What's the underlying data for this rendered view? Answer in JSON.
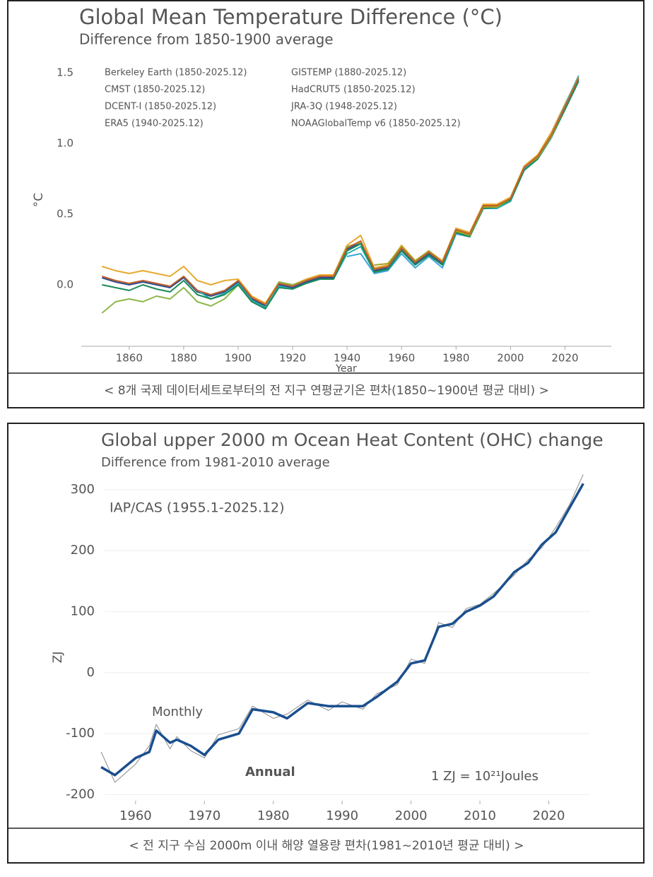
{
  "chart_data": [
    {
      "type": "line",
      "title": "Global Mean Temperature Difference (°C)",
      "subtitle": "Difference from 1850-1900 average",
      "y_label": "°C",
      "x_label": "Year",
      "caption": "< 8개 국제 데이터세트로부터의 전 지구 연평균기온 편차(1850~1900년 평균 대비) >",
      "x": [
        1850,
        1855,
        1860,
        1865,
        1870,
        1875,
        1880,
        1885,
        1890,
        1895,
        1900,
        1905,
        1910,
        1915,
        1920,
        1925,
        1930,
        1935,
        1940,
        1945,
        1950,
        1955,
        1960,
        1965,
        1970,
        1975,
        1980,
        1985,
        1990,
        1995,
        2000,
        2005,
        2010,
        2015,
        2020,
        2025
      ],
      "xlim": [
        1845,
        2030
      ],
      "xticks": [
        1860,
        1880,
        1900,
        1920,
        1940,
        1960,
        1980,
        2000,
        2020
      ],
      "ylim": [
        -0.4,
        1.6
      ],
      "yticks": [
        {
          "value": 0,
          "label": "0.0"
        },
        0.5,
        {
          "value": 1,
          "label": "1.0"
        },
        1.5
      ],
      "grid": false,
      "series": [
        {
          "name": "Berkeley Earth (1850-2025.12)",
          "color": "#2c4a8a",
          "values": [
            0.05,
            0.02,
            0.0,
            0.02,
            0.0,
            -0.02,
            0.05,
            -0.05,
            -0.08,
            -0.05,
            0.02,
            -0.1,
            -0.15,
            0.0,
            -0.02,
            0.02,
            0.05,
            0.05,
            0.25,
            0.3,
            0.1,
            0.12,
            0.25,
            0.15,
            0.22,
            0.15,
            0.38,
            0.35,
            0.55,
            0.55,
            0.6,
            0.82,
            0.9,
            1.05,
            1.25,
            1.45
          ]
        },
        {
          "name": "CMST (1850-2025.12)",
          "color": "#e8a92e",
          "values": [
            0.13,
            0.1,
            0.08,
            0.1,
            0.08,
            0.06,
            0.13,
            0.03,
            0,
            0.03,
            0.04,
            -0.08,
            -0.13,
            0.02,
            0,
            0.04,
            0.07,
            0.07,
            0.28,
            0.35,
            0.12,
            0.14,
            0.28,
            0.17,
            0.24,
            0.17,
            0.4,
            0.37,
            0.57,
            0.57,
            0.62,
            0.84,
            0.92,
            1.08,
            1.28,
            1.47
          ]
        },
        {
          "name": "DCENT-I (1850-2025.12)",
          "color": "#8db84a",
          "values": [
            -0.2,
            -0.12,
            -0.1,
            -0.12,
            -0.08,
            -0.1,
            -0.02,
            -0.12,
            -0.15,
            -0.1,
            0,
            -0.12,
            -0.16,
            0.02,
            0,
            0.03,
            0.06,
            0.06,
            0.27,
            0.3,
            0.11,
            0.13,
            0.26,
            0.16,
            0.23,
            0.16,
            0.39,
            0.36,
            0.56,
            0.56,
            0.61,
            0.83,
            0.91,
            1.06,
            1.26,
            1.46
          ]
        },
        {
          "name": "ERA5 (1940-2025.12)",
          "color": "#3aa6d8",
          "values": [
            null,
            null,
            null,
            null,
            null,
            null,
            null,
            null,
            null,
            null,
            null,
            null,
            null,
            null,
            null,
            null,
            null,
            null,
            0.2,
            0.22,
            0.08,
            0.1,
            0.22,
            0.12,
            0.2,
            0.12,
            0.36,
            0.34,
            0.54,
            0.54,
            0.6,
            0.82,
            0.9,
            1.06,
            1.27,
            1.48
          ]
        },
        {
          "name": "GISTEMP (1880-2025.12)",
          "color": "#2bb0b0",
          "values": [
            null,
            null,
            null,
            null,
            null,
            null,
            0.06,
            -0.04,
            -0.1,
            -0.06,
            0.01,
            -0.11,
            -0.16,
            -0.01,
            -0.03,
            0.01,
            0.04,
            0.04,
            0.22,
            0.27,
            0.09,
            0.11,
            0.24,
            0.14,
            0.21,
            0.14,
            0.37,
            0.34,
            0.54,
            0.54,
            0.59,
            0.81,
            0.89,
            1.04,
            1.24,
            1.44
          ]
        },
        {
          "name": "HadCRUT5 (1850-2025.12)",
          "color": "#1a8a5a",
          "values": [
            0,
            -0.02,
            -0.04,
            0,
            -0.03,
            -0.05,
            0.03,
            -0.07,
            -0.1,
            -0.07,
            0,
            -0.12,
            -0.17,
            -0.02,
            -0.03,
            0.01,
            0.04,
            0.04,
            0.24,
            0.29,
            0.09,
            0.11,
            0.24,
            0.14,
            0.21,
            0.14,
            0.37,
            0.34,
            0.54,
            0.55,
            0.6,
            0.81,
            0.89,
            1.05,
            1.24,
            1.44
          ]
        },
        {
          "name": "JRA-3Q (1948-2025.12)",
          "color": "#a3a324",
          "values": [
            null,
            null,
            null,
            null,
            null,
            null,
            null,
            null,
            null,
            null,
            null,
            null,
            null,
            null,
            null,
            null,
            null,
            null,
            null,
            null,
            0.14,
            0.15,
            0.27,
            0.17,
            0.24,
            0.16,
            0.38,
            0.35,
            0.55,
            0.55,
            0.61,
            0.83,
            0.9,
            1.05,
            1.26,
            1.47
          ]
        },
        {
          "name": "NOAAGlobalTemp v6 (1850-2025.12)",
          "color": "#c0602e",
          "values": [
            0.06,
            0.03,
            0.01,
            0.03,
            0.01,
            -0.01,
            0.06,
            -0.04,
            -0.07,
            -0.04,
            0.03,
            -0.09,
            -0.14,
            0.01,
            -0.01,
            0.03,
            0.06,
            0.06,
            0.26,
            0.31,
            0.11,
            0.13,
            0.26,
            0.16,
            0.23,
            0.16,
            0.39,
            0.36,
            0.56,
            0.56,
            0.61,
            0.83,
            0.91,
            1.06,
            1.26,
            1.46
          ]
        }
      ]
    },
    {
      "type": "line",
      "title": "Global upper 2000 m Ocean Heat Content (OHC) change",
      "subtitle": "Difference from 1981-2010 average",
      "y_label": "ZJ",
      "caption": "< 전 지구 수심 2000m 이내 해양 열용량 편차(1981~2010년 평균 대비) >",
      "annotations": [
        "IAP/CAS (1955.1-2025.12)",
        "1 ZJ =  10²¹Joules"
      ],
      "x": [
        1955,
        1957,
        1960,
        1962,
        1963,
        1965,
        1966,
        1968,
        1970,
        1972,
        1975,
        1977,
        1980,
        1982,
        1985,
        1988,
        1990,
        1993,
        1995,
        1998,
        2000,
        2002,
        2004,
        2006,
        2008,
        2010,
        2012,
        2015,
        2017,
        2019,
        2021,
        2023,
        2025
      ],
      "xlim": [
        1955.5,
        2026
      ],
      "xticks": [
        1960,
        1970,
        1980,
        1990,
        2000,
        2010,
        2020
      ],
      "ylim": [
        -210,
        330
      ],
      "yticks": [
        -200,
        -100,
        0,
        100,
        200,
        300
      ],
      "grid": true,
      "series": [
        {
          "name": "Monthly",
          "color": "#8a8a8a",
          "values": [
            -130,
            -180,
            -150,
            -120,
            -85,
            -125,
            -105,
            -128,
            -140,
            -102,
            -92,
            -55,
            -75,
            -68,
            -45,
            -62,
            -48,
            -60,
            -35,
            -20,
            22,
            15,
            82,
            74,
            105,
            112,
            130,
            160,
            185,
            205,
            238,
            275,
            325
          ]
        },
        {
          "name": "Annual",
          "color": "#1a4f8f",
          "values": [
            -155,
            -168,
            -140,
            -130,
            -95,
            -115,
            -110,
            -120,
            -135,
            -110,
            -100,
            -60,
            -65,
            -75,
            -50,
            -55,
            -55,
            -55,
            -40,
            -15,
            15,
            20,
            75,
            80,
            100,
            110,
            125,
            165,
            180,
            210,
            230,
            270,
            310
          ]
        }
      ]
    }
  ]
}
